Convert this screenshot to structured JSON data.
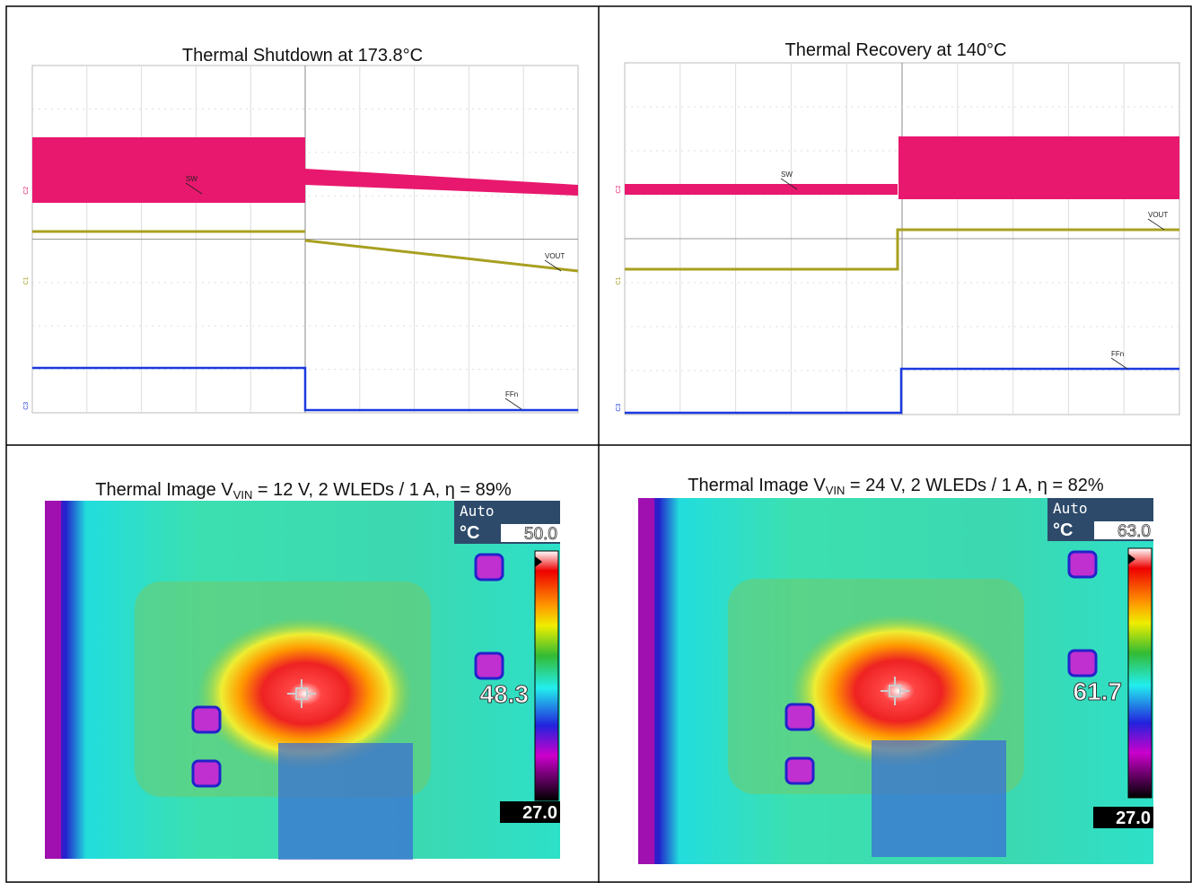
{
  "scope_shutdown": {
    "title": "Thermal Shutdown at 173.8°C",
    "traces": [
      "SW",
      "VOUT",
      "FFn"
    ],
    "channels": [
      "C2",
      "C1",
      "C3"
    ]
  },
  "scope_recovery": {
    "title": "Thermal Recovery at 140°C",
    "traces": [
      "SW",
      "VOUT",
      "FFn"
    ],
    "channels": [
      "C2",
      "C1",
      "C3"
    ]
  },
  "thermal_12v": {
    "title_start": "Thermal Image V",
    "title_subscript": "VIN",
    "title_end": " = 12 V, 2 WLEDs / 1 A, η = 89%",
    "mode": "Auto",
    "unit": "°C",
    "scale_max": "50.0",
    "spot": "48.3",
    "scale_min": "27.0"
  },
  "thermal_24v": {
    "title_start": "Thermal Image V",
    "title_subscript": "VIN",
    "title_end": " = 24 V, 2 WLEDs / 1 A, η = 82%",
    "mode": "Auto",
    "unit": "°C",
    "scale_max": "63.0",
    "spot": "61.7",
    "scale_min": "27.0"
  }
}
